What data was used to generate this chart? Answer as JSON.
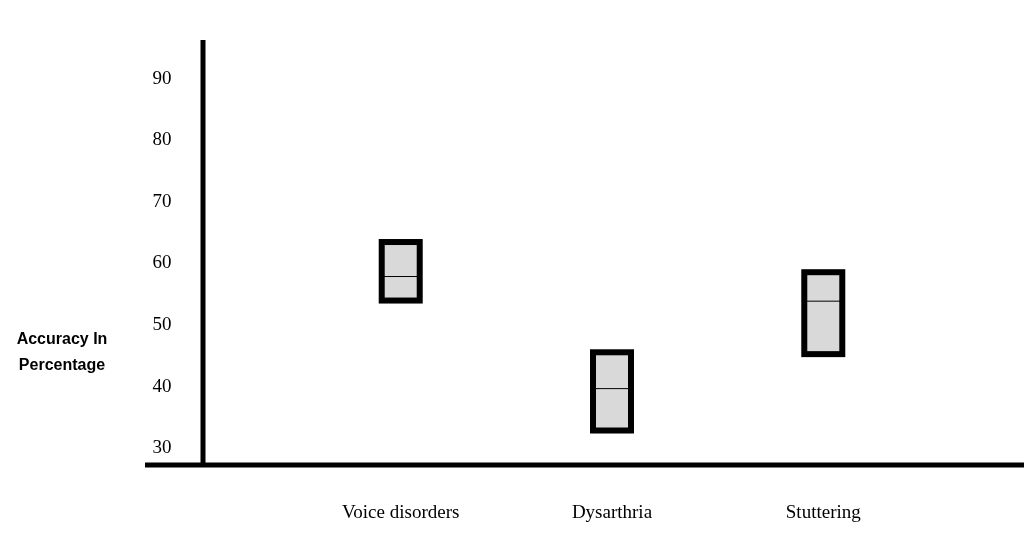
{
  "chart_data": {
    "type": "box",
    "ylabel": "Accuracy In Percentage",
    "categories": [
      "Voice disorders",
      "Dysarthria",
      "Stuttering"
    ],
    "boxes": [
      {
        "q1": 53.7,
        "median": 57.6,
        "q3": 63.2
      },
      {
        "q1": 32.6,
        "median": 39.4,
        "q3": 45.3
      },
      {
        "q1": 45,
        "median": 53.6,
        "q3": 58.3
      }
    ],
    "color": "#d9d9d9",
    "ylim": [
      27,
      96
    ],
    "yticks": [
      30,
      40,
      50,
      60,
      70,
      80,
      90
    ],
    "grid": false
  }
}
